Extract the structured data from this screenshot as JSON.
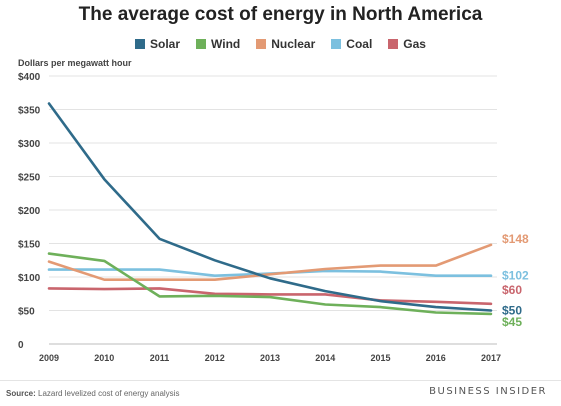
{
  "chart_data": {
    "type": "line",
    "title": "The average cost of energy in North America",
    "ylabel": "Dollars per megawatt hour",
    "xlabel": "",
    "x": [
      2009,
      2010,
      2011,
      2012,
      2013,
      2014,
      2015,
      2016,
      2017
    ],
    "ylim": [
      0,
      400
    ],
    "yticks": [
      0,
      50,
      100,
      150,
      200,
      250,
      300,
      350,
      400
    ],
    "ytick_labels": [
      "0",
      "$50",
      "$100",
      "$150",
      "$200",
      "$250",
      "$300",
      "$350",
      "$400"
    ],
    "grid": "horizontal",
    "legend_position": "top",
    "series": [
      {
        "name": "Solar",
        "color": "#2f6b8a",
        "values": [
          359,
          246,
          157,
          125,
          98,
          79,
          64,
          55,
          50
        ],
        "end_label": "$50"
      },
      {
        "name": "Wind",
        "color": "#6eb05a",
        "values": [
          135,
          124,
          71,
          72,
          70,
          59,
          55,
          47,
          45
        ],
        "end_label": "$45"
      },
      {
        "name": "Nuclear",
        "color": "#e39a74",
        "values": [
          123,
          96,
          96,
          96,
          104,
          112,
          117,
          117,
          148
        ],
        "end_label": "$148"
      },
      {
        "name": "Coal",
        "color": "#7cc0df",
        "values": [
          111,
          111,
          111,
          102,
          105,
          109,
          108,
          102,
          102
        ],
        "end_label": "$102"
      },
      {
        "name": "Gas",
        "color": "#c9656d",
        "values": [
          83,
          82,
          83,
          75,
          74,
          74,
          65,
          63,
          60
        ],
        "end_label": "$60"
      }
    ]
  },
  "footer": {
    "source_label": "Source:",
    "source_text": "Lazard levelized cost of energy analysis",
    "brand": "BUSINESS INSIDER"
  }
}
